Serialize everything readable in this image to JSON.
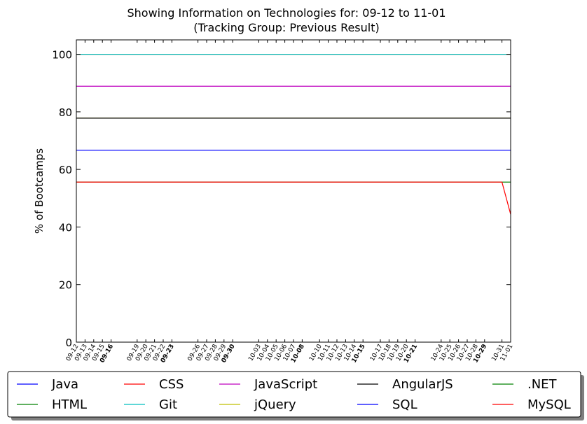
{
  "chart_data": {
    "type": "line",
    "title": [
      "Showing Information on Technologies for: 09-12 to 11-01",
      "(Tracking Group: Previous Result)"
    ],
    "xlabel": "",
    "ylabel": "% of Bootcamps",
    "ylim": [
      0,
      105
    ],
    "yticks": [
      0,
      20,
      40,
      60,
      80,
      100
    ],
    "grid": false,
    "legend_position": "bottom",
    "x": [
      "09-12",
      "09-13",
      "09-14",
      "09-15",
      "09-16",
      "09-17",
      "09-18",
      "09-19",
      "09-20",
      "09-21",
      "09-22",
      "09-23",
      "09-24",
      "09-25",
      "09-26",
      "09-27",
      "09-28",
      "09-29",
      "09-30",
      "10-01",
      "10-02",
      "10-03",
      "10-04",
      "10-05",
      "10-06",
      "10-07",
      "10-08",
      "10-09",
      "10-10",
      "10-11",
      "10-12",
      "10-13",
      "10-14",
      "10-15",
      "10-16",
      "10-17",
      "10-18",
      "10-19",
      "10-20",
      "10-21",
      "10-22",
      "10-23",
      "10-24",
      "10-25",
      "10-26",
      "10-27",
      "10-28",
      "10-29",
      "10-30",
      "10-31",
      "11-01"
    ],
    "xtick_labels": [
      {
        "label": "09-12",
        "bold": false
      },
      {
        "label": "09-13",
        "bold": false
      },
      {
        "label": "09-14",
        "bold": false
      },
      {
        "label": "09-15",
        "bold": false
      },
      {
        "label": "09-16",
        "bold": true
      },
      {
        "label": "09-19",
        "bold": false
      },
      {
        "label": "09-20",
        "bold": false
      },
      {
        "label": "09-21",
        "bold": false
      },
      {
        "label": "09-22",
        "bold": false
      },
      {
        "label": "09-23",
        "bold": true
      },
      {
        "label": "09-26",
        "bold": false
      },
      {
        "label": "09-27",
        "bold": false
      },
      {
        "label": "09-28",
        "bold": false
      },
      {
        "label": "09-29",
        "bold": false
      },
      {
        "label": "09-30",
        "bold": true
      },
      {
        "label": "10-03",
        "bold": false
      },
      {
        "label": "10-04",
        "bold": false
      },
      {
        "label": "10-05",
        "bold": false
      },
      {
        "label": "10-06",
        "bold": false
      },
      {
        "label": "10-07",
        "bold": false
      },
      {
        "label": "10-08",
        "bold": true
      },
      {
        "label": "10-10",
        "bold": false
      },
      {
        "label": "10-11",
        "bold": false
      },
      {
        "label": "10-12",
        "bold": false
      },
      {
        "label": "10-13",
        "bold": false
      },
      {
        "label": "10-14",
        "bold": false
      },
      {
        "label": "10-15",
        "bold": true
      },
      {
        "label": "10-17",
        "bold": false
      },
      {
        "label": "10-18",
        "bold": false
      },
      {
        "label": "10-19",
        "bold": false
      },
      {
        "label": "10-20",
        "bold": false
      },
      {
        "label": "10-21",
        "bold": true
      },
      {
        "label": "10-24",
        "bold": false
      },
      {
        "label": "10-25",
        "bold": false
      },
      {
        "label": "10-26",
        "bold": false
      },
      {
        "label": "10-27",
        "bold": false
      },
      {
        "label": "10-28",
        "bold": false
      },
      {
        "label": "10-29",
        "bold": true
      },
      {
        "label": "10-31",
        "bold": false
      },
      {
        "label": "11-01",
        "bold": false
      }
    ],
    "series": [
      {
        "name": "Java",
        "color": "#0000ff",
        "points": [
          [
            "09-12",
            66.7
          ],
          [
            "11-01",
            66.7
          ]
        ]
      },
      {
        "name": "HTML",
        "color": "#008000",
        "points": [
          [
            "09-12",
            100
          ],
          [
            "11-01",
            100
          ]
        ]
      },
      {
        "name": "CSS",
        "color": "#ff0000",
        "points": [
          [
            "09-12",
            100
          ],
          [
            "11-01",
            100
          ]
        ]
      },
      {
        "name": "Git",
        "color": "#00bfbf",
        "points": [
          [
            "09-12",
            100
          ],
          [
            "11-01",
            100
          ]
        ]
      },
      {
        "name": "JavaScript",
        "color": "#bf00bf",
        "points": [
          [
            "09-12",
            88.9
          ],
          [
            "11-01",
            88.9
          ]
        ]
      },
      {
        "name": "jQuery",
        "color": "#bfbf00",
        "points": [
          [
            "09-12",
            77.8
          ],
          [
            "11-01",
            77.8
          ]
        ]
      },
      {
        "name": "AngularJS",
        "color": "#000000",
        "points": [
          [
            "09-12",
            77.8
          ],
          [
            "11-01",
            77.8
          ]
        ]
      },
      {
        "name": "SQL",
        "color": "#0000ff",
        "points": [
          [
            "09-12",
            66.7
          ],
          [
            "11-01",
            66.7
          ]
        ]
      },
      {
        "name": ".NET",
        "color": "#008000",
        "points": [
          [
            "09-12",
            55.6
          ],
          [
            "11-01",
            55.6
          ]
        ]
      },
      {
        "name": "MySQL",
        "color": "#ff0000",
        "points": [
          [
            "09-12",
            55.6
          ],
          [
            "10-31",
            55.6
          ],
          [
            "11-01",
            44.4
          ]
        ]
      }
    ]
  }
}
